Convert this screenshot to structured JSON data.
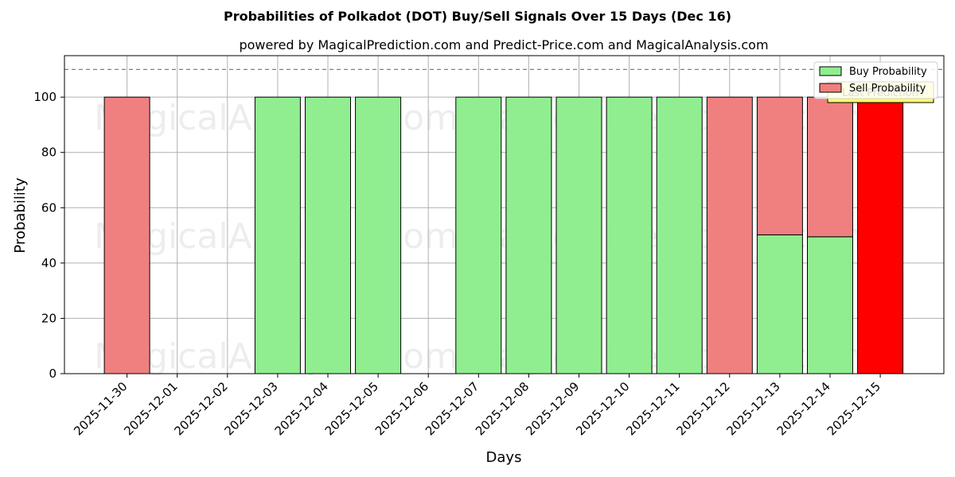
{
  "chart_data": {
    "type": "bar",
    "title": "Probabilities of Polkadot (DOT) Buy/Sell Signals Over 15 Days (Dec 16)",
    "subtitle": "powered by MagicalPrediction.com and Predict-Price.com and MagicalAnalysis.com",
    "xlabel": "Days",
    "ylabel": "Probability",
    "ylim": [
      0,
      115
    ],
    "yticks": [
      0,
      20,
      40,
      60,
      80,
      100
    ],
    "reference_line": 110,
    "grid": true,
    "categories": [
      "2025-11-30",
      "2025-12-01",
      "2025-12-02",
      "2025-12-03",
      "2025-12-04",
      "2025-12-05",
      "2025-12-06",
      "2025-12-07",
      "2025-12-08",
      "2025-12-09",
      "2025-12-10",
      "2025-12-11",
      "2025-12-12",
      "2025-12-13",
      "2025-12-14",
      "2025-12-15"
    ],
    "series": [
      {
        "name": "Buy Probability",
        "color": "#90ee90",
        "values": [
          0,
          null,
          null,
          100,
          100,
          100,
          null,
          100,
          100,
          100,
          100,
          100,
          0,
          50.2,
          49.5,
          0
        ]
      },
      {
        "name": "Sell Probability",
        "color": "#f08080",
        "values": [
          100,
          null,
          null,
          0,
          0,
          0,
          null,
          0,
          0,
          0,
          0,
          0,
          100,
          49.8,
          50.5,
          100
        ]
      }
    ],
    "highlight": {
      "category": "2025-12-15",
      "color": "#ff0000",
      "label": "Last Prediction"
    },
    "legend_position": "top-right",
    "watermarks": [
      "MagicalAnalysis.com",
      "MagicalPrediction.com"
    ]
  }
}
